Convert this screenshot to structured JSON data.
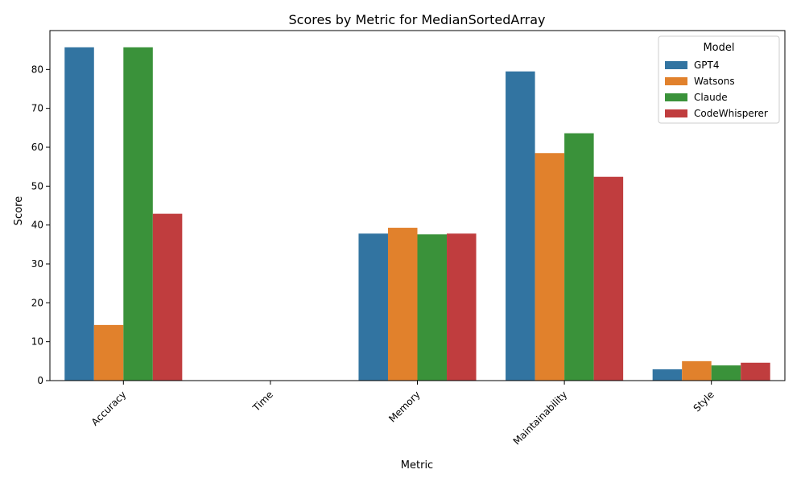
{
  "chart_data": {
    "type": "bar",
    "title": "Scores by Metric for MedianSortedArray",
    "xlabel": "Metric",
    "ylabel": "Score",
    "categories": [
      "Accuracy",
      "Time",
      "Memory",
      "Maintainability",
      "Style"
    ],
    "ylim": [
      0,
      90
    ],
    "yticks": [
      0,
      10,
      20,
      30,
      40,
      50,
      60,
      70,
      80
    ],
    "grid": false,
    "legend": {
      "title": "Model",
      "placement": "top-right"
    },
    "series": [
      {
        "name": "GPT4",
        "color": "#3274a1",
        "values": [
          85.7,
          0,
          37.8,
          79.5,
          2.9
        ]
      },
      {
        "name": "Watsons",
        "color": "#e1812c",
        "values": [
          14.3,
          0,
          39.3,
          58.5,
          5.0
        ]
      },
      {
        "name": "Claude",
        "color": "#3a923a",
        "values": [
          85.7,
          0,
          37.6,
          63.6,
          3.9
        ]
      },
      {
        "name": "CodeWhisperer",
        "color": "#c03d3e",
        "values": [
          42.9,
          0,
          37.8,
          52.4,
          4.6
        ]
      }
    ]
  }
}
